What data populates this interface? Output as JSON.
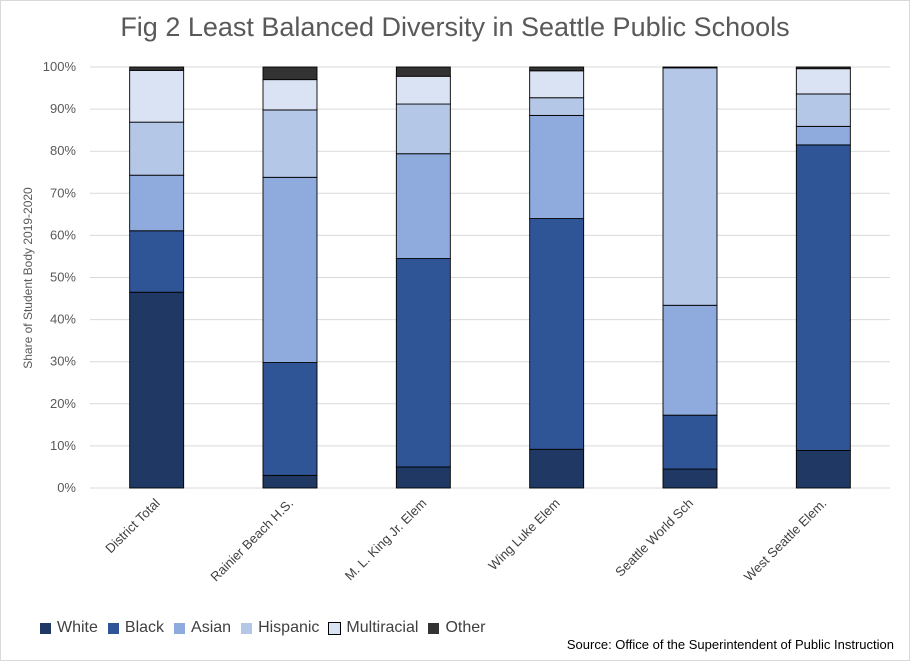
{
  "chart_data": {
    "type": "bar",
    "stacked": true,
    "title": "Fig 2 Least Balanced Diversity in Seattle Public Schools",
    "ylabel": "Share of Student Body 2019-2020",
    "xlabel": "",
    "ylim": [
      0,
      100
    ],
    "yticks": [
      "0%",
      "10%",
      "20%",
      "30%",
      "40%",
      "50%",
      "60%",
      "70%",
      "80%",
      "90%",
      "100%"
    ],
    "grid": true,
    "legend_position": "bottom-left",
    "categories": [
      "District Total",
      "Rainier Beach H.S.",
      "M. L. King Jr. Elem",
      "Wing Luke Elem",
      "Seattle World Sch",
      "West Seattle Elem."
    ],
    "series": [
      {
        "name": "White",
        "color": "#1f3864",
        "values": [
          46.5,
          3,
          5,
          9.2,
          4.5,
          8.9
        ]
      },
      {
        "name": "Black",
        "color": "#2f5597",
        "values": [
          14.6,
          26.8,
          49.5,
          54.8,
          12.8,
          72.6
        ]
      },
      {
        "name": "Asian",
        "color": "#8faadc",
        "values": [
          13.2,
          44,
          24.9,
          24.5,
          26.1,
          4.4
        ]
      },
      {
        "name": "Hispanic",
        "color": "#b4c7e7",
        "values": [
          12.6,
          16,
          11.8,
          4.2,
          56.4,
          7.7
        ]
      },
      {
        "name": "Multiracial",
        "color": "#dae3f3",
        "values": [
          12.3,
          7.2,
          6.6,
          6.4,
          0,
          6
        ]
      },
      {
        "name": "Other",
        "color": "#333333",
        "values": [
          0.8,
          3,
          2.2,
          0.9,
          0.2,
          0.4
        ]
      }
    ],
    "source": "Source: Office of the Superintendent of Public Instruction"
  }
}
